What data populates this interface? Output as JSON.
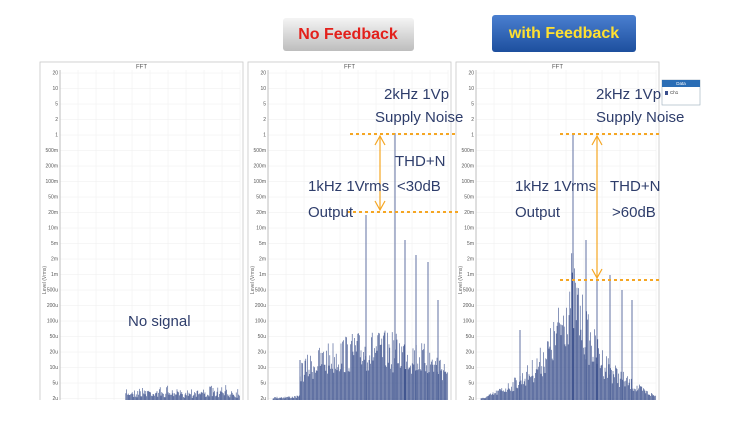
{
  "buttons": {
    "no_feedback": "No Feedback",
    "with_feedback": "with Feedback"
  },
  "panel_title": "FFT",
  "y_axis_label": "Level (Vrms)",
  "y_ticks": [
    "20",
    "10",
    "5",
    "2",
    "1",
    "500m",
    "200m",
    "100m",
    "50m",
    "20m",
    "10m",
    "5m",
    "2m",
    "1m",
    "500u",
    "200u",
    "100u",
    "50u",
    "20u",
    "10u",
    "5u",
    "2u"
  ],
  "legend": {
    "title": "Data",
    "entry": "Ch1"
  },
  "annotations": {
    "no_signal": "No signal",
    "supply_noise_1": "2kHz 1Vp",
    "supply_noise_2": "Supply Noise",
    "output_1": "1kHz 1Vrms",
    "output_2": "Output",
    "thd_label": "THD+N",
    "thd_no_feedback": "<30dB",
    "thd_with_feedback": ">60dB"
  }
}
